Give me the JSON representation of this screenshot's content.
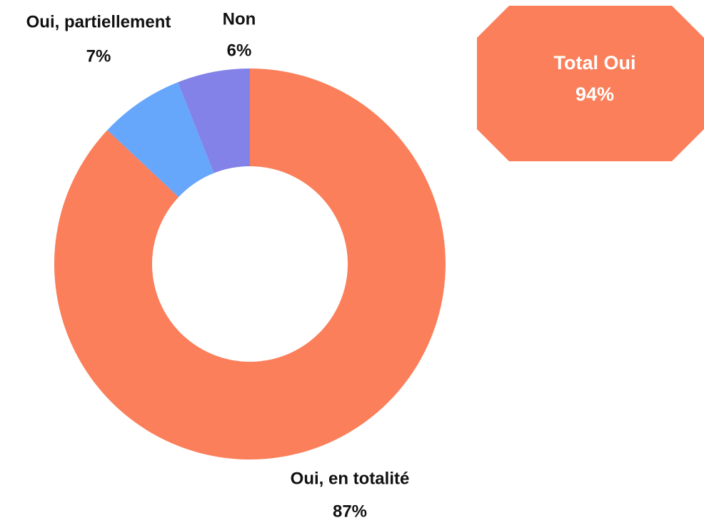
{
  "chart_data": {
    "type": "donut",
    "categories": [
      "Oui, en totalité",
      "Oui, partiellement",
      "Non"
    ],
    "values": [
      87,
      7,
      6
    ],
    "value_labels": [
      "87%",
      "7%",
      "6%"
    ],
    "colors": [
      "#fb7f5a",
      "#66a6fb",
      "#8282e8"
    ],
    "annotation": {
      "title": "Total Oui",
      "text": "94%"
    }
  }
}
